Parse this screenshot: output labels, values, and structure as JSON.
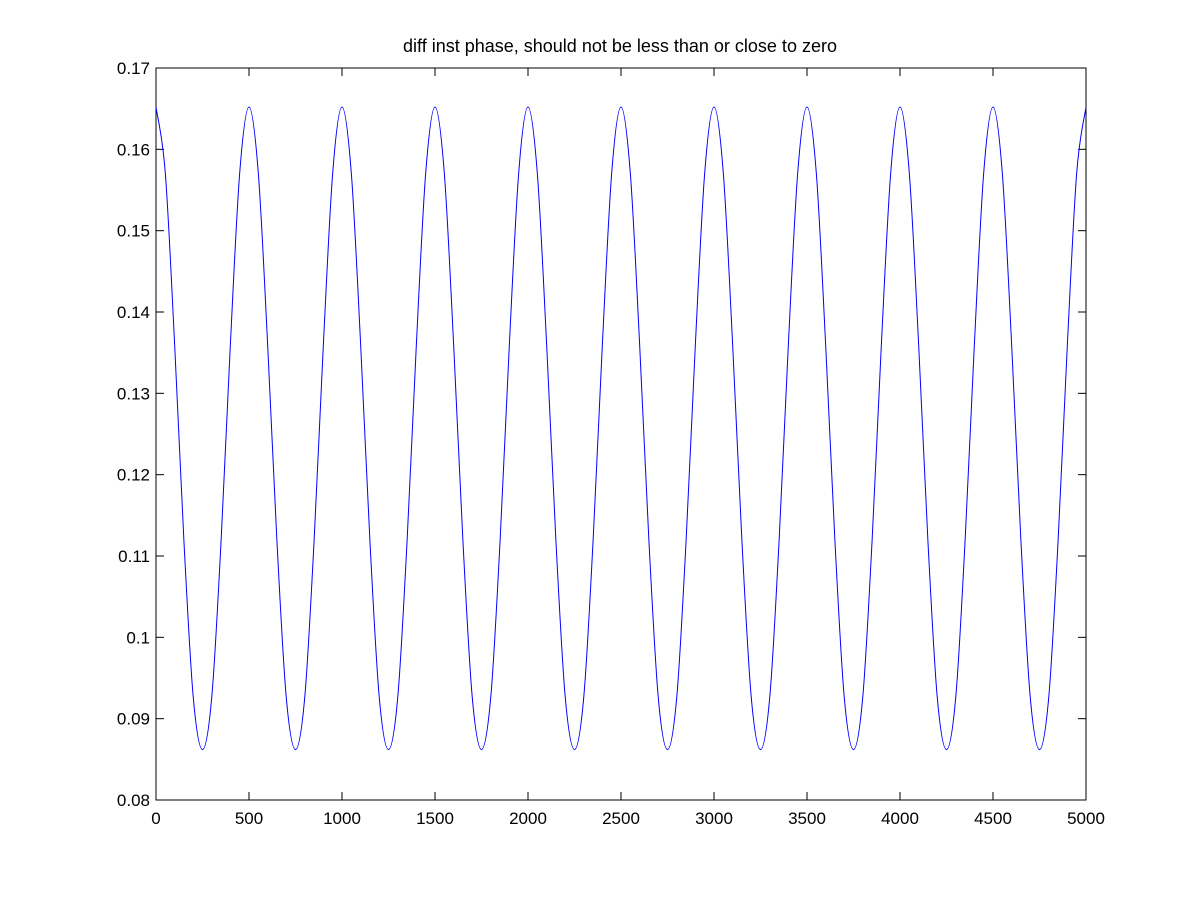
{
  "chart_data": {
    "type": "line",
    "title": "diff inst phase, should not be less than or close to zero",
    "xlabel": "",
    "ylabel": "",
    "xlim": [
      0,
      5000
    ],
    "ylim": [
      0.08,
      0.17
    ],
    "x_ticks": [
      0,
      500,
      1000,
      1500,
      2000,
      2500,
      3000,
      3500,
      4000,
      4500,
      5000
    ],
    "x_tick_labels": [
      "0",
      "500",
      "1000",
      "1500",
      "2000",
      "2500",
      "3000",
      "3500",
      "4000",
      "4500",
      "5000"
    ],
    "y_ticks": [
      0.08,
      0.09,
      0.1,
      0.11,
      0.12,
      0.13,
      0.14,
      0.15,
      0.16,
      0.17
    ],
    "y_tick_labels": [
      "0.08",
      "0.09",
      "0.1",
      "0.11",
      "0.12",
      "0.13",
      "0.14",
      "0.15",
      "0.16",
      "0.17"
    ],
    "grid": false,
    "legend": "none",
    "series": [
      {
        "color": "#0000ff",
        "x": [
          0,
          50,
          100,
          150,
          200,
          250,
          300,
          350,
          400,
          450,
          500,
          550,
          600,
          650,
          700,
          750,
          800,
          850,
          900,
          950,
          1000,
          1050,
          1100,
          1150,
          1200,
          1250,
          1300,
          1350,
          1400,
          1450,
          1500,
          1550,
          1600,
          1650,
          1700,
          1750,
          1800,
          1850,
          1900,
          1950,
          2000,
          2050,
          2100,
          2150,
          2200,
          2250,
          2300,
          2350,
          2400,
          2450,
          2500,
          2550,
          2600,
          2650,
          2700,
          2750,
          2800,
          2850,
          2900,
          2950,
          3000,
          3050,
          3100,
          3150,
          3200,
          3250,
          3300,
          3350,
          3400,
          3450,
          3500,
          3550,
          3600,
          3650,
          3700,
          3750,
          3800,
          3850,
          3900,
          3950,
          4000,
          4050,
          4100,
          4150,
          4200,
          4250,
          4300,
          4350,
          4400,
          4450,
          4500,
          4550,
          4600,
          4650,
          4700,
          4750,
          4800,
          4850,
          4900,
          4950,
          5000
        ],
        "y": [
          0.1652,
          0.1571,
          0.1361,
          0.1119,
          0.0927,
          0.0862,
          0.0927,
          0.1119,
          0.1361,
          0.1571,
          0.1652,
          0.1571,
          0.1361,
          0.1119,
          0.0927,
          0.0862,
          0.0927,
          0.1119,
          0.1361,
          0.1571,
          0.1652,
          0.1571,
          0.1361,
          0.1119,
          0.0927,
          0.0862,
          0.0927,
          0.1119,
          0.1361,
          0.1571,
          0.1652,
          0.1571,
          0.1361,
          0.1119,
          0.0927,
          0.0862,
          0.0927,
          0.1119,
          0.1361,
          0.1571,
          0.1652,
          0.1571,
          0.1361,
          0.1119,
          0.0927,
          0.0862,
          0.0927,
          0.1119,
          0.1361,
          0.1571,
          0.1652,
          0.1571,
          0.1361,
          0.1119,
          0.0927,
          0.0862,
          0.0927,
          0.1119,
          0.1361,
          0.1571,
          0.1652,
          0.1571,
          0.1361,
          0.1119,
          0.0927,
          0.0862,
          0.0927,
          0.1119,
          0.1361,
          0.1571,
          0.1652,
          0.1571,
          0.1361,
          0.1119,
          0.0927,
          0.0862,
          0.0927,
          0.1119,
          0.1361,
          0.1571,
          0.1652,
          0.1571,
          0.1361,
          0.1119,
          0.0927,
          0.0862,
          0.0927,
          0.1119,
          0.1361,
          0.1571,
          0.1652,
          0.1571,
          0.1361,
          0.1119,
          0.0927,
          0.0862,
          0.0927,
          0.1119,
          0.1361,
          0.1571,
          0.1652
        ]
      }
    ]
  }
}
